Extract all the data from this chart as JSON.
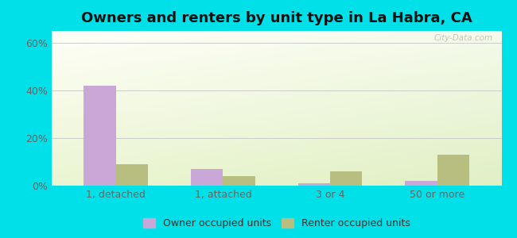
{
  "title": "Owners and renters by unit type in La Habra, CA",
  "categories": [
    "1, detached",
    "1, attached",
    "3 or 4",
    "50 or more"
  ],
  "owner_values": [
    42,
    7,
    1,
    2
  ],
  "renter_values": [
    9,
    4,
    6,
    13
  ],
  "owner_color": "#c9a8d8",
  "renter_color": "#b8be80",
  "ylim": [
    0,
    65
  ],
  "yticks": [
    0,
    20,
    40,
    60
  ],
  "ytick_labels": [
    "0%",
    "20%",
    "40%",
    "60%"
  ],
  "outer_background": "#00e0e8",
  "legend_owner": "Owner occupied units",
  "legend_renter": "Renter occupied units",
  "title_fontsize": 13,
  "bar_width": 0.3,
  "watermark": "City-Data.com"
}
